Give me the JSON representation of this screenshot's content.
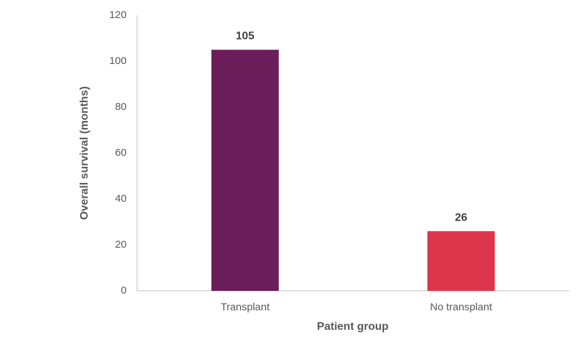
{
  "chart_data": {
    "type": "bar",
    "categories": [
      "Transplant",
      "No transplant"
    ],
    "values": [
      105,
      26
    ],
    "colors": [
      "#6a1d58",
      "#dc364c"
    ],
    "xlabel": "Patient group",
    "ylabel": "Overall survival (months)",
    "ylim": [
      0,
      120
    ],
    "yticks": [
      0,
      20,
      40,
      60,
      80,
      100,
      120
    ],
    "grid": false
  }
}
